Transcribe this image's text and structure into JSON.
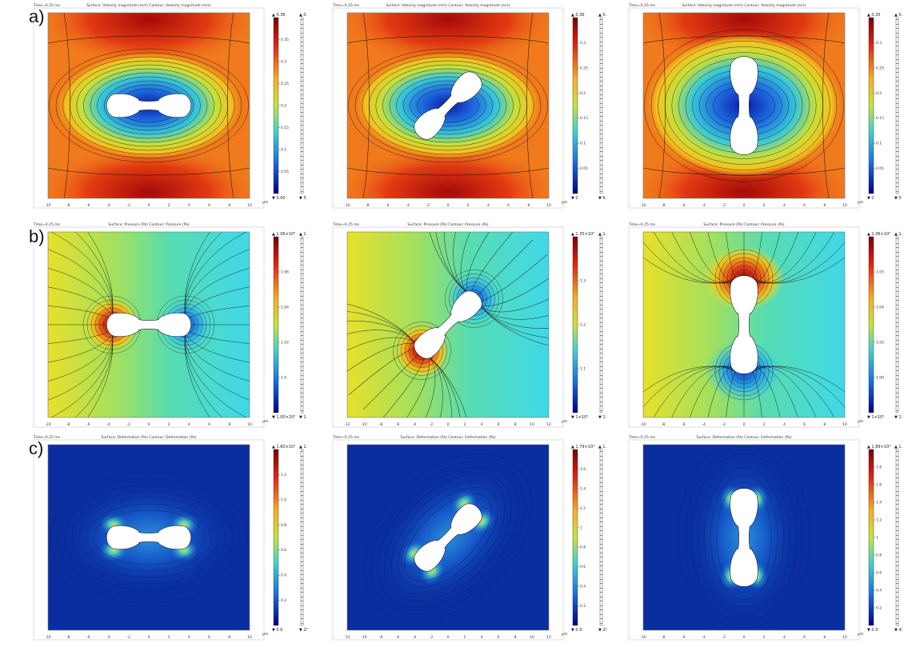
{
  "figure": {
    "row_labels": [
      "a)",
      "b)",
      "c)"
    ],
    "rows": [
      {
        "quantity": "velocity",
        "colormap": "rainbow",
        "panels": [
          {
            "orientation_deg": 0,
            "time_label": "Time=0.25 ms",
            "plot_title": "Surface: Velocity magnitude (m/s)  Contour: Velocity magnitude (m/s)",
            "x_axis_unit": "µm",
            "x_ticks": [
              "-10",
              "-8",
              "-6",
              "-4",
              "-2",
              "0",
              "2",
              "4",
              "6",
              "8",
              "10"
            ],
            "colorbar_top": "▲ 0.36",
            "colorbar_bottom": "▼ 0.00",
            "colorbar_ticks": [
              "0.35",
              "0.3",
              "0.25",
              "0.2",
              "0.15",
              "0.1",
              "0.05"
            ],
            "contour_top": "▲ 0.36",
            "contour_bottom": "▼ 5.00×10⁻⁴"
          },
          {
            "orientation_deg": -45,
            "time_label": "Time=0.25 ms",
            "plot_title": "Surface: Velocity magnitude (m/s)  Contour: Velocity magnitude (m/s)",
            "x_axis_unit": "µm",
            "x_ticks": [
              "-10",
              "-8",
              "-6",
              "-4",
              "-2",
              "0",
              "2",
              "4",
              "6",
              "8",
              "10"
            ],
            "colorbar_top": "▲ 0.36",
            "colorbar_bottom": "▼ 0",
            "colorbar_ticks": [
              "0.3",
              "0.25",
              "0.2",
              "0.15",
              "0.1",
              "0.05"
            ],
            "contour_top": "▲ 0.36",
            "contour_bottom": "▼ 6.7×10⁻⁴"
          },
          {
            "orientation_deg": 90,
            "time_label": "Time=0.25 ms",
            "plot_title": "Surface: Velocity magnitude (m/s)  Contour: Velocity magnitude (m/s)",
            "x_axis_unit": "µm",
            "x_ticks": [
              "-10",
              "-8",
              "-6",
              "-4",
              "-2",
              "0",
              "2",
              "4",
              "6",
              "8",
              "10"
            ],
            "colorbar_top": "▲ 0.35",
            "colorbar_bottom": "▼ 0",
            "colorbar_ticks": [
              "0.3",
              "0.25",
              "0.2",
              "0.15",
              "0.1",
              "0.05"
            ],
            "contour_top": "▲ 0.35",
            "contour_bottom": "▼ 0"
          }
        ]
      },
      {
        "quantity": "pressure",
        "colormap": "rainbow",
        "panels": [
          {
            "orientation_deg": 0,
            "time_label": "Time=0.25 ms",
            "plot_title": "Surface: Pressure (Pa)  Contour: Pressure (Pa)",
            "x_axis_unit": "µm",
            "x_ticks": [
              "-10",
              "-8",
              "-6",
              "-4",
              "-2",
              "0",
              "2",
              "4",
              "6",
              "8",
              "10"
            ],
            "colorbar_top": "▲ 1.06×10⁵",
            "colorbar_bottom": "▼ 1.00×10⁵",
            "colorbar_ticks": [
              "1.06",
              "1.04",
              "1.02",
              "1.0"
            ],
            "contour_top": "▲ 1.06×10⁵",
            "contour_bottom": "▼ 1.00×10⁵"
          },
          {
            "orientation_deg": -45,
            "time_label": "Time=0.25 ms",
            "plot_title": "Surface: Pressure (Pa)  Contour: Pressure (Pa)",
            "x_axis_unit": "µm",
            "x_ticks": [
              "-12",
              "-10",
              "-8",
              "-6",
              "-4",
              "-2",
              "0",
              "2",
              "4",
              "6",
              "8",
              "10",
              "12"
            ],
            "colorbar_top": "▲ 1.35×10⁵",
            "colorbar_bottom": "▼ 1×10⁵",
            "colorbar_ticks": [
              "1.3",
              "1.2",
              "1.1"
            ],
            "contour_top": "▲ 1.35×10⁵",
            "contour_bottom": "▼ 1×10⁵"
          },
          {
            "orientation_deg": 90,
            "time_label": "Time=0.25 ms",
            "plot_title": "Surface: Pressure (Pa)  Contour: Pressure (Pa)",
            "x_axis_unit": "µm",
            "x_ticks": [
              "-10",
              "-8",
              "-6",
              "-4",
              "-2",
              "0",
              "2",
              "4",
              "6",
              "8",
              "10"
            ],
            "colorbar_top": "▲ 1.06×10⁵",
            "colorbar_bottom": "▼ 1×10⁵",
            "colorbar_ticks": [
              "1.05",
              "1.04",
              "1.02",
              "1.00"
            ],
            "contour_top": "▲ 1.06×10⁵",
            "contour_bottom": "▼ 1×10⁵"
          }
        ]
      },
      {
        "quantity": "deformation",
        "colormap": "jet-blue",
        "panels": [
          {
            "orientation_deg": 0,
            "time_label": "Time=0.25 ms",
            "plot_title": "Surface: Deformation (Pa)  Contour: Deformation (Pa)",
            "x_axis_unit": "µm",
            "x_ticks": [
              "-10",
              "-8",
              "-6",
              "-4",
              "-2",
              "0",
              "2",
              "4",
              "6",
              "8",
              "10"
            ],
            "colorbar_top": "▲ 1.60×10⁴",
            "colorbar_bottom": "▼ 0.0",
            "colorbar_ticks": [
              "1.2",
              "1.0",
              "0.8",
              "0.6",
              "0.4",
              "0.2"
            ],
            "contour_top": "▲ 1.60×10⁴",
            "contour_bottom": "▼ 25.2"
          },
          {
            "orientation_deg": -45,
            "time_label": "Time=0.25 ms",
            "plot_title": "Surface: Deformation (Pa)  Contour: Deformation (Pa)",
            "x_axis_unit": "µm",
            "x_ticks": [
              "-12",
              "-10",
              "-8",
              "-6",
              "-4",
              "-2",
              "0",
              "2",
              "4",
              "6",
              "8",
              "10",
              "12"
            ],
            "colorbar_top": "▲ 1.79×10⁴",
            "colorbar_bottom": "▼ 0.0",
            "colorbar_ticks": [
              "1.6",
              "1.4",
              "1.2",
              "1",
              "0.8",
              "0.6",
              "0.4",
              "0.2"
            ],
            "contour_top": "▲ 1.79×10⁴",
            "contour_bottom": "▼ 25.4"
          },
          {
            "orientation_deg": 90,
            "time_label": "Time=0.25 ms",
            "plot_title": "Surface: Deformation (Pa)  Contour: Deformation (Pa)",
            "x_axis_unit": "µm",
            "x_ticks": [
              "-10",
              "-8",
              "-6",
              "-4",
              "-2",
              "0",
              "2",
              "4",
              "6",
              "8",
              "10"
            ],
            "colorbar_top": "▲ 1.89×10⁴",
            "colorbar_bottom": "▼ 0.0",
            "colorbar_ticks": [
              "1.8",
              "1.6",
              "1.4",
              "1.2",
              "1",
              "0.8",
              "0.6",
              "0.4",
              "0.2"
            ],
            "contour_top": "▲ 1.89×10⁴",
            "contour_bottom": "▼ 43.6"
          }
        ]
      }
    ]
  }
}
